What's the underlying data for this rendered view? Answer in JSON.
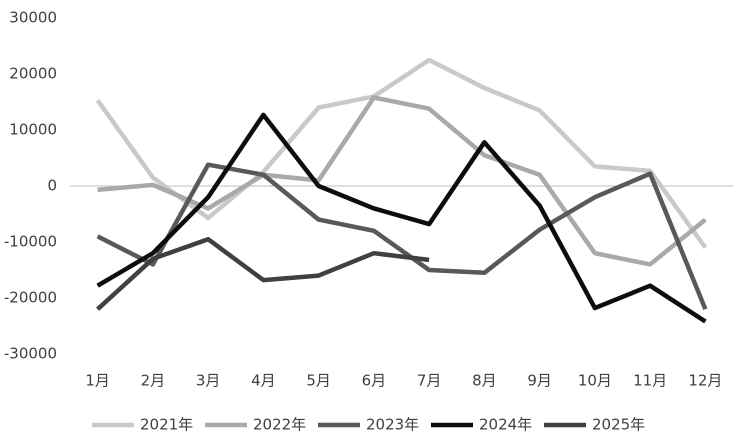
{
  "chart_data": {
    "type": "line",
    "categories": [
      "1月",
      "2月",
      "3月",
      "4月",
      "5月",
      "6月",
      "7月",
      "8月",
      "9月",
      "10月",
      "11月",
      "12月"
    ],
    "series": [
      {
        "name": "2021年",
        "color": "#c9c9c9",
        "values": [
          15300,
          1500,
          -5700,
          2500,
          14000,
          16000,
          22500,
          17500,
          13500,
          3500,
          2700,
          -11000
        ]
      },
      {
        "name": "2022年",
        "color": "#a9a9a9",
        "values": [
          -700,
          200,
          -4000,
          2000,
          1000,
          15800,
          13800,
          5500,
          2000,
          -12000,
          -14000,
          -6000
        ]
      },
      {
        "name": "2023年",
        "color": "#595959",
        "values": [
          -9000,
          -14000,
          3800,
          2000,
          -6000,
          -8000,
          -15000,
          -15500,
          -7800,
          -2000,
          2200,
          -22000
        ]
      },
      {
        "name": "2024年",
        "color": "#0d0d0d",
        "values": [
          -17800,
          -12000,
          -2000,
          12700,
          0,
          -4000,
          -6800,
          7800,
          -3500,
          -21800,
          -17800,
          -24200
        ]
      },
      {
        "name": "2025年",
        "color": "#404040",
        "values": [
          -22000,
          -13000,
          -9500,
          -16800,
          -16000,
          -12000,
          -13200,
          null,
          null,
          null,
          null,
          null
        ]
      }
    ],
    "ylim": [
      -30000,
      30000
    ],
    "yticks": [
      -30000,
      -20000,
      -10000,
      0,
      10000,
      20000,
      30000
    ],
    "legend": "bottom"
  }
}
